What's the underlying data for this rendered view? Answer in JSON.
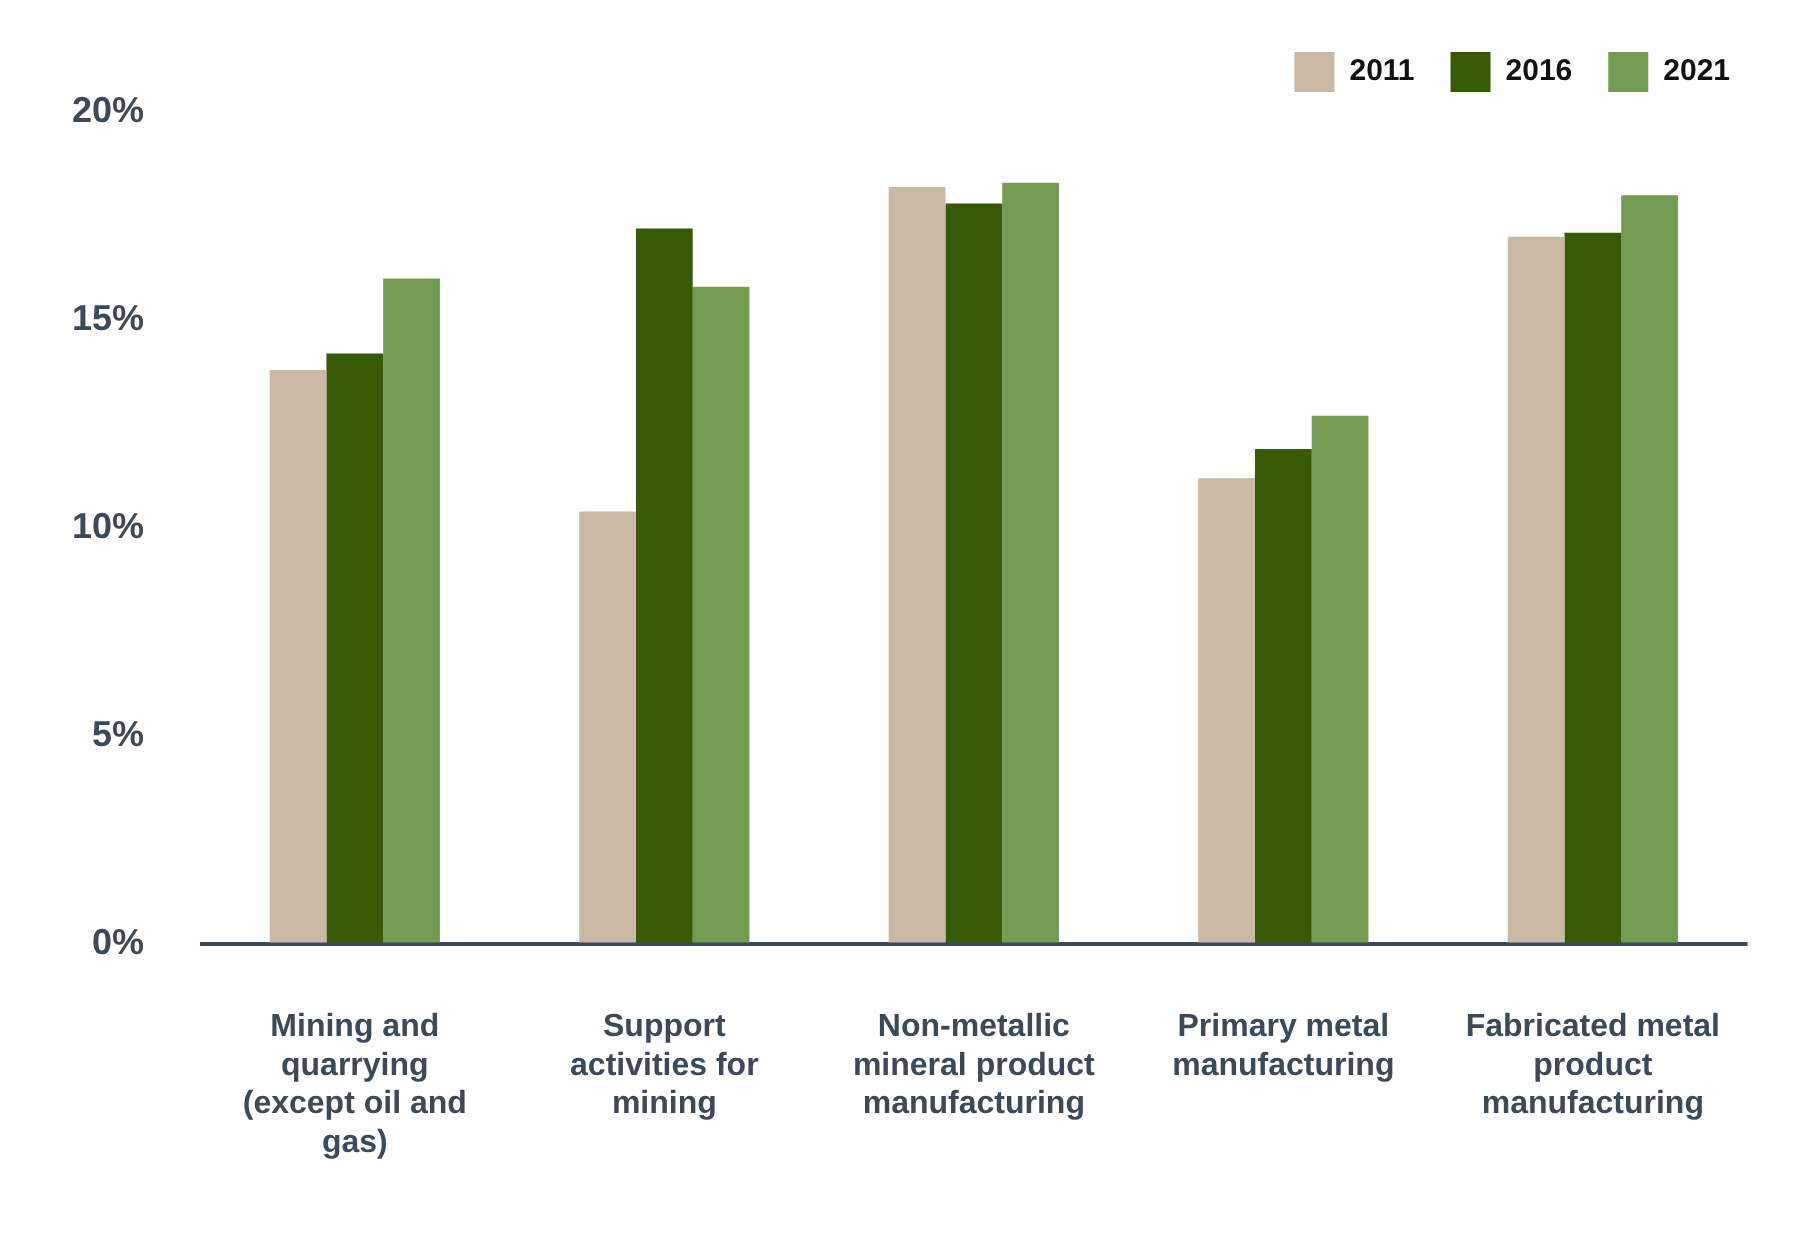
{
  "chart_data": {
    "type": "bar",
    "categories": [
      "Mining and quarrying (except oil and gas)",
      "Support activities for mining",
      "Non-metallic mineral product manufacturing",
      "Primary metal manufacturing",
      "Fabricated metal product manufacturing"
    ],
    "series": [
      {
        "name": "2011",
        "color": "#c9b8a3",
        "values": [
          13.8,
          10.4,
          18.2,
          11.2,
          17.0
        ]
      },
      {
        "name": "2016",
        "color": "#365a05",
        "values": [
          14.2,
          17.2,
          17.8,
          11.9,
          17.1
        ]
      },
      {
        "name": "2021",
        "color": "#739b52",
        "values": [
          16.0,
          15.8,
          18.3,
          12.7,
          18.0
        ]
      }
    ],
    "ylim": [
      0,
      20
    ],
    "yticks": [
      {
        "value": 0,
        "label": "0%"
      },
      {
        "value": 5,
        "label": "5%"
      },
      {
        "value": 10,
        "label": "10%"
      },
      {
        "value": 15,
        "label": "15%"
      },
      {
        "value": 20,
        "label": "20%"
      }
    ],
    "grid": false,
    "legend": "top right"
  }
}
